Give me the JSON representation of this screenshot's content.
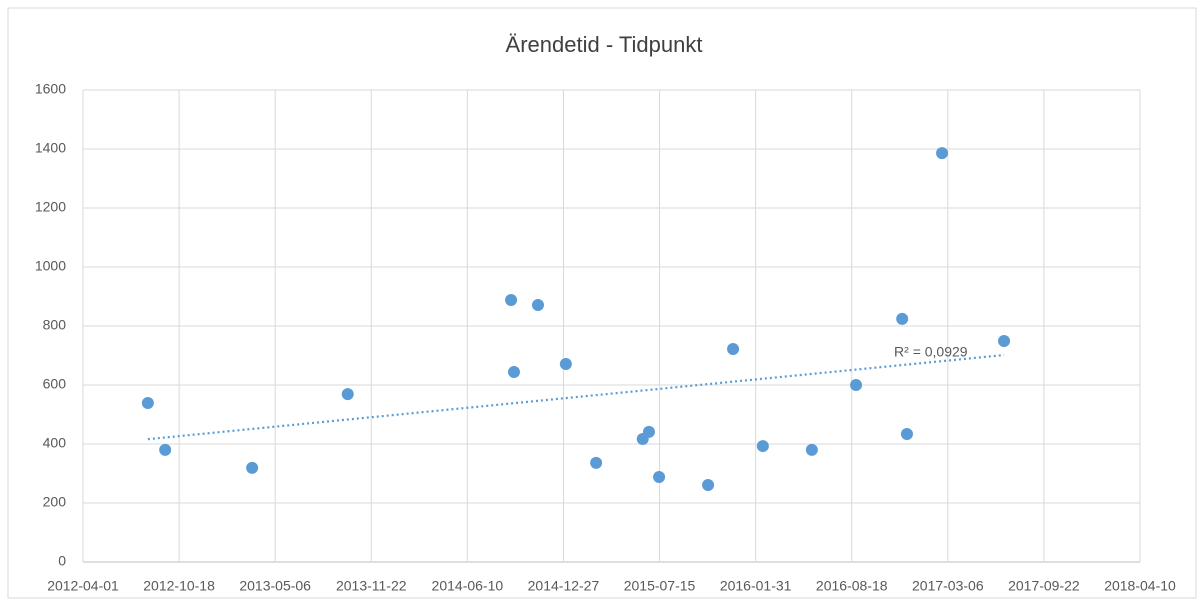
{
  "chart_data": {
    "type": "scatter",
    "title": "Ärendetid - Tidpunkt",
    "x": [
      "2012-08-14",
      "2012-09-19",
      "2013-03-19",
      "2013-10-04",
      "2014-09-09",
      "2014-09-15",
      "2014-11-04",
      "2015-01-01",
      "2015-03-05",
      "2015-06-10",
      "2015-06-23",
      "2015-07-14",
      "2015-10-24",
      "2015-12-15",
      "2016-02-15",
      "2016-05-27",
      "2016-08-27",
      "2016-12-01",
      "2016-12-11",
      "2017-02-22",
      "2017-07-01"
    ],
    "series": [
      {
        "name": "Ärendetid",
        "color": "#5b9bd5",
        "values": [
          539,
          380,
          319,
          569,
          888,
          644,
          871,
          671,
          336,
          417,
          441,
          288,
          261,
          722,
          393,
          380,
          600,
          824,
          434,
          1386,
          749
        ]
      }
    ],
    "xlim": [
      "2012-04-01",
      "2018-04-10"
    ],
    "xticks": [
      "2012-04-01",
      "2012-10-18",
      "2013-05-06",
      "2013-11-22",
      "2014-06-10",
      "2014-12-27",
      "2015-07-15",
      "2016-01-31",
      "2016-08-18",
      "2017-03-06",
      "2017-09-22",
      "2018-04-10"
    ],
    "ylim": [
      0,
      1600
    ],
    "yticks": [
      0,
      200,
      400,
      600,
      800,
      1000,
      1200,
      1400,
      1600
    ],
    "grid": true,
    "trendline": {
      "type": "linear",
      "label": "R² = 0,0929",
      "color": "#5b9bd5"
    }
  }
}
